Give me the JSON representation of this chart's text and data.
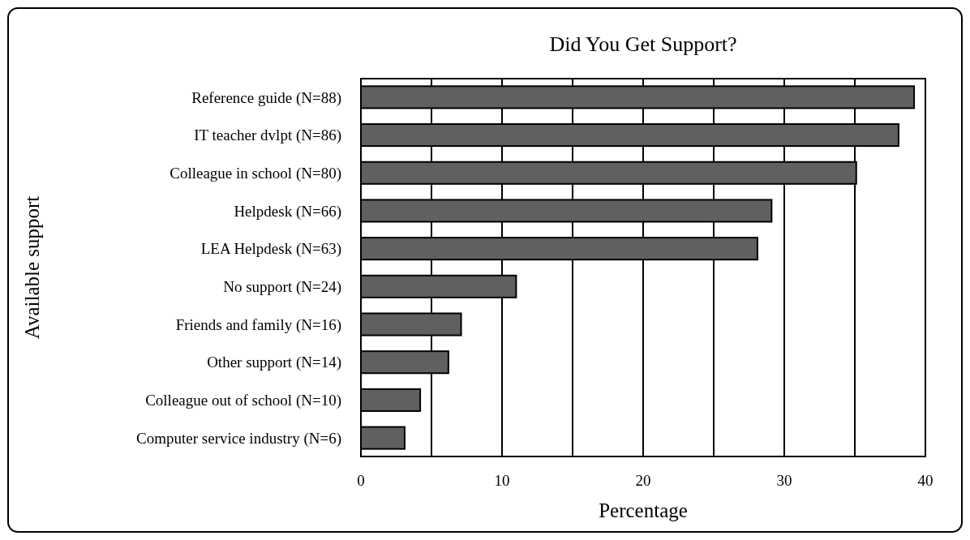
{
  "chart_data": {
    "type": "bar",
    "orientation": "horizontal",
    "title": "Did You Get Support?",
    "xlabel": "Percentage",
    "ylabel": "Available support",
    "categories": [
      "Reference guide (N=88)",
      "IT teacher dvlpt (N=86)",
      "Colleague in school (N=80)",
      "Helpdesk (N=66)",
      "LEA Helpdesk (N=63)",
      "No support (N=24)",
      "Friends and family (N=16)",
      "Other support (N=14)",
      "Colleague out of school (N=10)",
      "Computer service industry (N=6)"
    ],
    "values": [
      39.2,
      38.1,
      35.1,
      29.1,
      28.1,
      11.0,
      7.1,
      6.2,
      4.2,
      3.1
    ],
    "color": "#606060",
    "xlim": [
      0,
      40
    ],
    "xticks": [
      0,
      {
        "value": 5,
        "label": null
      },
      10,
      {
        "value": 15,
        "label": null
      },
      20,
      {
        "value": 25,
        "label": null
      },
      30,
      {
        "value": 35,
        "label": null
      },
      40
    ],
    "grid": "x"
  }
}
